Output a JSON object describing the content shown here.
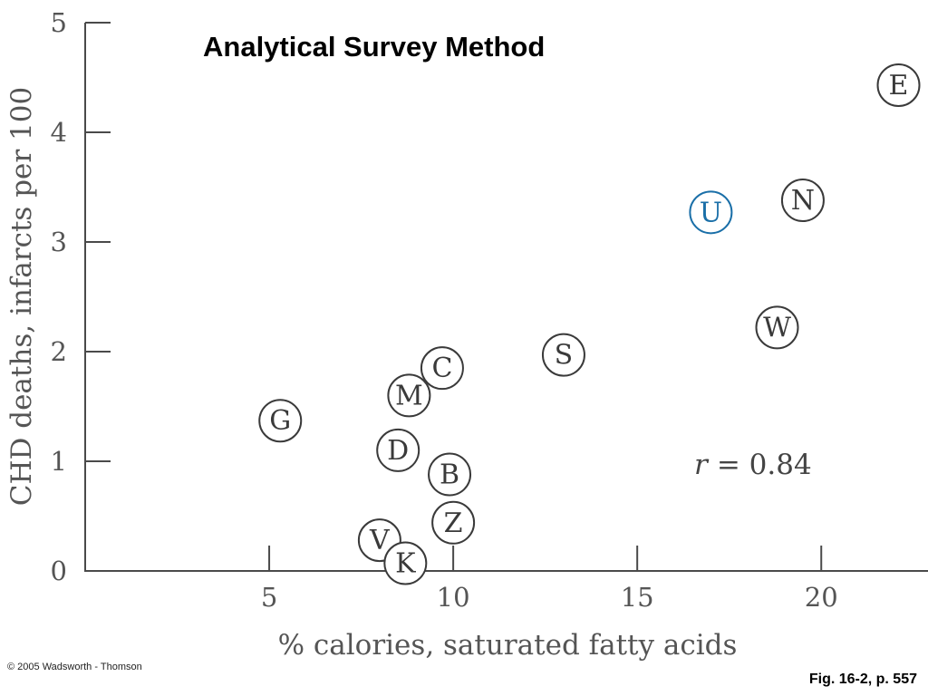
{
  "slide": {
    "title": "Analytical Survey Method",
    "copyright": "© 2005 Wadsworth - Thomson",
    "figure_ref": "Fig. 16-2, p. 557"
  },
  "chart_data": {
    "type": "scatter",
    "xlabel": "% calories, saturated fatty acids",
    "ylabel": "CHD deaths, infarcts per 100",
    "xlim": [
      0,
      22.9
    ],
    "ylim": [
      0,
      5
    ],
    "x_ticks": [
      5,
      10,
      15,
      20
    ],
    "y_ticks": [
      0,
      1,
      2,
      3,
      4,
      5
    ],
    "grid": false,
    "annotation": {
      "prefix": "r",
      "text": "= 0.84"
    },
    "points": [
      {
        "label": "E",
        "x": 22.1,
        "y": 4.43,
        "color": "#3a3a3a"
      },
      {
        "label": "N",
        "x": 19.5,
        "y": 3.38,
        "color": "#3a3a3a"
      },
      {
        "label": "U",
        "x": 17.0,
        "y": 3.27,
        "color": "#1a6fa8"
      },
      {
        "label": "W",
        "x": 18.8,
        "y": 2.22,
        "color": "#3a3a3a"
      },
      {
        "label": "S",
        "x": 13.0,
        "y": 1.97,
        "color": "#3a3a3a"
      },
      {
        "label": "C",
        "x": 9.7,
        "y": 1.85,
        "color": "#3a3a3a"
      },
      {
        "label": "M",
        "x": 8.8,
        "y": 1.6,
        "color": "#3a3a3a"
      },
      {
        "label": "G",
        "x": 5.3,
        "y": 1.37,
        "color": "#3a3a3a"
      },
      {
        "label": "D",
        "x": 8.5,
        "y": 1.1,
        "color": "#3a3a3a"
      },
      {
        "label": "B",
        "x": 9.9,
        "y": 0.88,
        "color": "#3a3a3a"
      },
      {
        "label": "Z",
        "x": 10.0,
        "y": 0.44,
        "color": "#3a3a3a"
      },
      {
        "label": "V",
        "x": 8.0,
        "y": 0.28,
        "color": "#3a3a3a"
      },
      {
        "label": "K",
        "x": 8.7,
        "y": 0.07,
        "color": "#3a3a3a"
      }
    ]
  }
}
